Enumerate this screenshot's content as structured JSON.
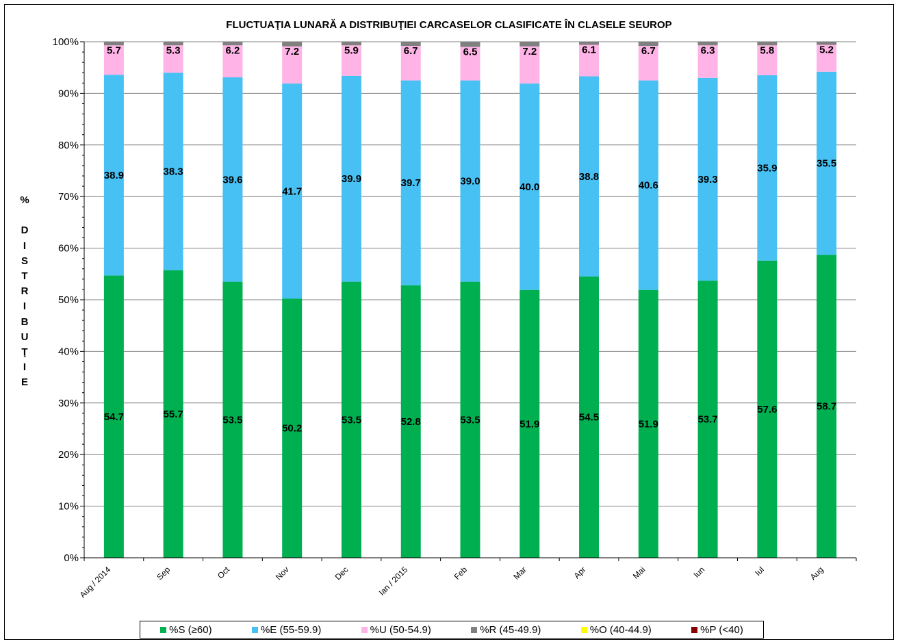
{
  "chart_data": {
    "type": "bar",
    "stacked": true,
    "title": "FLUCTUAŢIA LUNARĂ  A DISTRIBUŢIEI  CARCASELOR  CLASIFICATE  ÎN CLASELE SEUROP",
    "ylabel": [
      "%",
      "",
      "D",
      "I",
      "S",
      "T",
      "R",
      "I",
      "B",
      "U",
      "Ţ",
      "I",
      "E"
    ],
    "ylim": [
      0,
      100
    ],
    "yticks": [
      "0%",
      "10%",
      "20%",
      "30%",
      "40%",
      "50%",
      "60%",
      "70%",
      "80%",
      "90%",
      "100%"
    ],
    "grid": true,
    "legend_position": "bottom",
    "categories": [
      "Aug / 2014",
      "Sep",
      "Oct",
      "Nov",
      "Dec",
      "Ian / 2015",
      "Feb",
      "Mar",
      "Apr",
      "Mai",
      "Iun",
      "Iul",
      "Aug"
    ],
    "series": [
      {
        "name": "%S (≥60)",
        "color": "#00B050",
        "values": [
          54.7,
          55.7,
          53.5,
          50.2,
          53.5,
          52.8,
          53.5,
          51.9,
          54.5,
          51.9,
          53.7,
          57.6,
          58.7
        ],
        "labels": [
          "54.7",
          "55.7",
          "53.5",
          "50.2",
          "53.5",
          "52.8",
          "53.5",
          "51.9",
          "54.5",
          "51.9",
          "53.7",
          "57.6",
          "58.7"
        ]
      },
      {
        "name": "%E (55-59.9)",
        "color": "#47C1F3",
        "values": [
          38.9,
          38.3,
          39.6,
          41.7,
          39.9,
          39.7,
          39.0,
          40.0,
          38.8,
          40.6,
          39.3,
          35.9,
          35.5
        ],
        "labels": [
          "38.9",
          "38.3",
          "39.6",
          "41.7",
          "39.9",
          "39.7",
          "39.0",
          "40.0",
          "38.8",
          "40.6",
          "39.3",
          "35.9",
          "35.5"
        ]
      },
      {
        "name": "%U (50-54.9)",
        "color": "#FFB3E6",
        "values": [
          5.7,
          5.3,
          6.2,
          7.2,
          5.9,
          6.7,
          6.5,
          7.2,
          6.1,
          6.7,
          6.3,
          5.8,
          5.2
        ],
        "labels": [
          "5.7",
          "5.3",
          "6.2",
          "7.2",
          "5.9",
          "6.7",
          "6.5",
          "7.2",
          "6.1",
          "6.7",
          "6.3",
          "5.8",
          "5.2"
        ]
      },
      {
        "name": "%R (45-49.9)",
        "color": "#808080",
        "values": [
          0.7,
          0.7,
          0.7,
          0.9,
          0.7,
          0.8,
          1.0,
          0.9,
          0.6,
          0.8,
          0.7,
          0.7,
          0.6
        ]
      },
      {
        "name": "%O (40-44.9)",
        "color": "#FFFF00",
        "values": [
          0,
          0,
          0,
          0,
          0,
          0,
          0,
          0,
          0,
          0,
          0,
          0,
          0
        ]
      },
      {
        "name": "%P (<40)",
        "color": "#8B0000",
        "values": [
          0,
          0,
          0,
          0,
          0,
          0,
          0,
          0,
          0,
          0,
          0,
          0,
          0
        ]
      }
    ]
  }
}
